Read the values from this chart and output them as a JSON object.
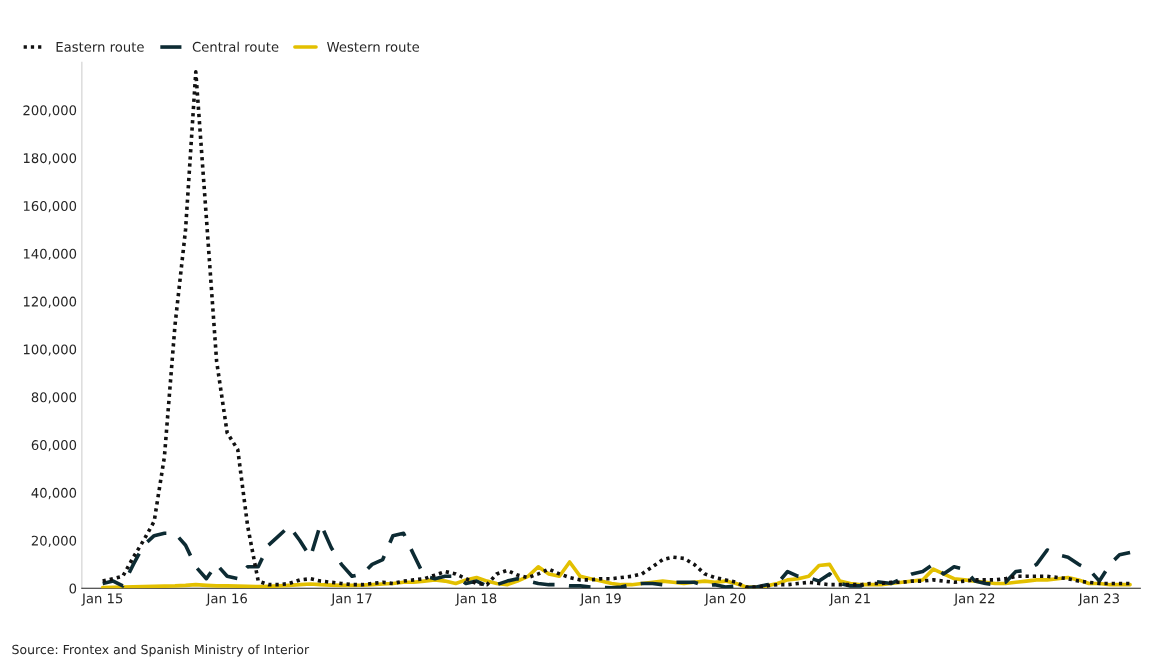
{
  "chart_data": {
    "type": "line",
    "x": [
      "2015-01",
      "2015-02",
      "2015-03",
      "2015-04",
      "2015-05",
      "2015-06",
      "2015-07",
      "2015-08",
      "2015-09",
      "2015-10",
      "2015-11",
      "2015-12",
      "2016-01",
      "2016-02",
      "2016-03",
      "2016-04",
      "2016-05",
      "2016-06",
      "2016-07",
      "2016-08",
      "2016-09",
      "2016-10",
      "2016-11",
      "2016-12",
      "2017-01",
      "2017-02",
      "2017-03",
      "2017-04",
      "2017-05",
      "2017-06",
      "2017-07",
      "2017-08",
      "2017-09",
      "2017-10",
      "2017-11",
      "2017-12",
      "2018-01",
      "2018-02",
      "2018-03",
      "2018-04",
      "2018-05",
      "2018-06",
      "2018-07",
      "2018-08",
      "2018-09",
      "2018-10",
      "2018-11",
      "2018-12",
      "2019-01",
      "2019-02",
      "2019-03",
      "2019-04",
      "2019-05",
      "2019-06",
      "2019-07",
      "2019-08",
      "2019-09",
      "2019-10",
      "2019-11",
      "2019-12",
      "2020-01",
      "2020-02",
      "2020-03",
      "2020-04",
      "2020-05",
      "2020-06",
      "2020-07",
      "2020-08",
      "2020-09",
      "2020-10",
      "2020-11",
      "2020-12",
      "2021-01",
      "2021-02",
      "2021-03",
      "2021-04",
      "2021-05",
      "2021-06",
      "2021-07",
      "2021-08",
      "2021-09",
      "2021-10",
      "2021-11",
      "2021-12",
      "2022-01",
      "2022-02",
      "2022-03",
      "2022-04",
      "2022-05",
      "2022-06",
      "2022-07",
      "2022-08",
      "2022-09",
      "2022-10",
      "2022-11",
      "2022-12",
      "2023-01",
      "2023-02",
      "2023-03",
      "2023-04"
    ],
    "series": [
      {
        "name": "Eastern route",
        "color": "#111111",
        "line_style": "dotted",
        "values": [
          3000,
          4000,
          5000,
          13000,
          20000,
          28000,
          55000,
          110000,
          150000,
          216000,
          155000,
          95000,
          65000,
          58000,
          26000,
          3000,
          1500,
          1500,
          2000,
          3500,
          4000,
          3000,
          2500,
          2000,
          1500,
          1500,
          2000,
          2500,
          2000,
          3000,
          3500,
          4000,
          5500,
          7000,
          6000,
          4000,
          2000,
          1500,
          6000,
          7500,
          5500,
          4500,
          6000,
          8000,
          6000,
          4500,
          3500,
          3500,
          4000,
          4000,
          4500,
          5000,
          6000,
          9000,
          12000,
          13000,
          12500,
          10000,
          6000,
          4500,
          3500,
          2500,
          500,
          500,
          1000,
          1500,
          1500,
          2000,
          2500,
          2000,
          1500,
          1500,
          1500,
          1500,
          2000,
          2000,
          2500,
          2500,
          3000,
          3000,
          3500,
          3000,
          2500,
          3000,
          3500,
          3500,
          3500,
          4000,
          5000,
          5000,
          5000,
          5000,
          4500,
          4000,
          3000,
          2500,
          2000,
          2000,
          2000,
          2000
        ]
      },
      {
        "name": "Central route",
        "color": "#0d2b33",
        "line_style": "dashed",
        "values": [
          2000,
          3000,
          1000,
          10000,
          18000,
          22000,
          23000,
          23000,
          18000,
          9000,
          4000,
          10000,
          5000,
          4000,
          9000,
          9000,
          18000,
          22000,
          26000,
          20000,
          13000,
          27000,
          17000,
          10000,
          5000,
          6000,
          10000,
          12000,
          22000,
          23000,
          14000,
          5000,
          4000,
          5000,
          5000,
          2000,
          3000,
          1000,
          1500,
          3000,
          4000,
          3000,
          2000,
          1500,
          1500,
          1000,
          1000,
          500,
          300,
          200,
          500,
          1500,
          2000,
          2000,
          1500,
          2500,
          2500,
          2500,
          1000,
          1500,
          500,
          1000,
          300,
          500,
          1500,
          2000,
          7000,
          5000,
          4500,
          3000,
          6000,
          2000,
          1000,
          1000,
          3000,
          2500,
          2000,
          4000,
          6000,
          7000,
          10000,
          6000,
          9000,
          8000,
          3000,
          2000,
          1500,
          2500,
          7000,
          7500,
          10000,
          16000,
          14000,
          13000,
          10000,
          8000,
          3000,
          10000,
          14000,
          15000
        ]
      },
      {
        "name": "Western route",
        "color": "#e3c000",
        "line_style": "solid",
        "values": [
          300,
          400,
          500,
          600,
          700,
          800,
          900,
          1000,
          1200,
          1500,
          1200,
          1000,
          1000,
          900,
          800,
          700,
          800,
          1000,
          1200,
          1500,
          1800,
          1500,
          1300,
          1200,
          1200,
          1300,
          1500,
          1800,
          2000,
          2500,
          2500,
          3000,
          3500,
          3000,
          2000,
          3500,
          4500,
          3000,
          2000,
          1500,
          3000,
          5000,
          9000,
          6000,
          5000,
          11000,
          5000,
          4000,
          3000,
          2000,
          1500,
          1500,
          2000,
          2500,
          3000,
          2500,
          2000,
          2500,
          3000,
          2500,
          3000,
          2000,
          500,
          500,
          1000,
          2000,
          3500,
          4000,
          5000,
          9500,
          10000,
          3000,
          2000,
          1500,
          1500,
          1500,
          2000,
          2500,
          3000,
          3500,
          8000,
          6000,
          4000,
          3500,
          3000,
          2500,
          2000,
          2000,
          2500,
          3000,
          3500,
          3500,
          4000,
          4500,
          3500,
          2000,
          2000,
          1500,
          1500,
          1500
        ]
      }
    ],
    "xlim": [
      "2014-11",
      "2023-05"
    ],
    "xticks": [
      {
        "value": "2015-01",
        "label": "Jan 15"
      },
      {
        "value": "2016-01",
        "label": "Jan 16"
      },
      {
        "value": "2017-01",
        "label": "Jan 17"
      },
      {
        "value": "2018-01",
        "label": "Jan 18"
      },
      {
        "value": "2019-01",
        "label": "Jan 19"
      },
      {
        "value": "2020-01",
        "label": "Jan 20"
      },
      {
        "value": "2021-01",
        "label": "Jan 21"
      },
      {
        "value": "2022-01",
        "label": "Jan 22"
      },
      {
        "value": "2023-01",
        "label": "Jan 23"
      }
    ],
    "ylim": [
      0,
      220000
    ],
    "yticks": [
      {
        "value": 0,
        "label": "0"
      },
      {
        "value": 20000,
        "label": "20,000"
      },
      {
        "value": 40000,
        "label": "40,000"
      },
      {
        "value": 60000,
        "label": "60,000"
      },
      {
        "value": 80000,
        "label": "80,000"
      },
      {
        "value": 100000,
        "label": "100,000"
      },
      {
        "value": 120000,
        "label": "120,000"
      },
      {
        "value": 140000,
        "label": "140,000"
      },
      {
        "value": 160000,
        "label": "160,000"
      },
      {
        "value": 180000,
        "label": "180,000"
      },
      {
        "value": 200000,
        "label": "200,000"
      }
    ],
    "grid": false,
    "legend": "top left",
    "marker": "none",
    "annotations": [
      "Source: Frontex and Spanish Ministry of Interior"
    ]
  }
}
